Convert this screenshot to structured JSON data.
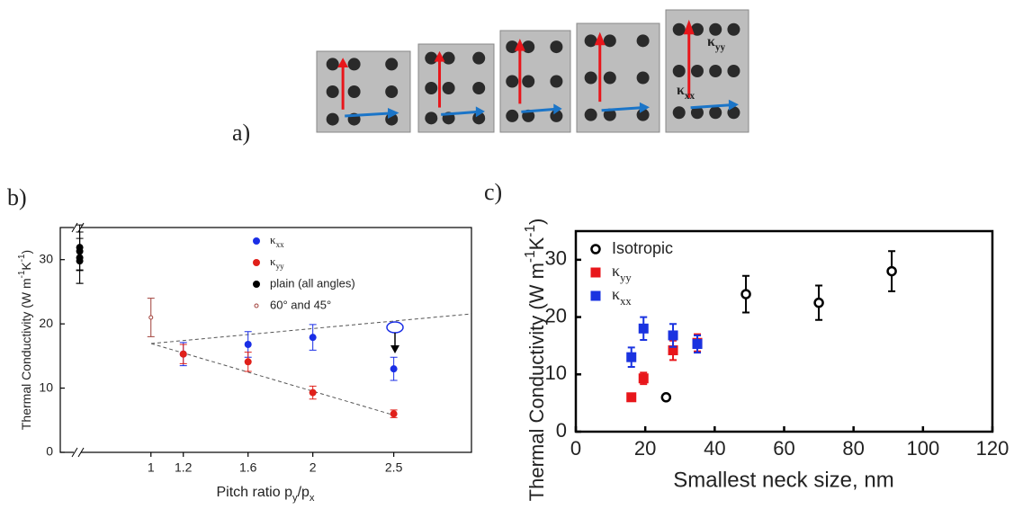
{
  "figure": {
    "panel_labels": [
      "a)",
      "b)",
      "c)"
    ],
    "image_labels": [
      [
        "κ",
        "yy"
      ],
      [
        "κ",
        "xx"
      ]
    ]
  },
  "chart_data": [
    {
      "type": "scatter",
      "y_label": [
        "Thermal Conductivity (W m",
        "-1",
        "K",
        "-1",
        ")"
      ],
      "x_label": [
        "Pitch ratio p",
        "y",
        "/p",
        "x"
      ],
      "xlim": [
        0.44,
        2.98
      ],
      "ylim": [
        0,
        35
      ],
      "xticks": [
        1,
        1.2,
        1.6,
        2,
        2.5
      ],
      "yticks": [
        0,
        10,
        20,
        30
      ],
      "series": [
        {
          "name": [
            "κ",
            "xx"
          ],
          "color": "#1a2ee6",
          "marker": "circle",
          "x": [
            1.2,
            1.6,
            2,
            2.5
          ],
          "values": [
            15.3,
            16.8,
            17.9,
            13
          ],
          "errors": [
            1.8,
            2,
            2,
            1.8
          ]
        },
        {
          "name": [
            "κ",
            "yy"
          ],
          "color": "#e0201a",
          "marker": "circle",
          "x": [
            1.2,
            1.6,
            2,
            2.5
          ],
          "values": [
            15.3,
            14.1,
            9.3,
            6
          ],
          "errors": [
            1.5,
            1.5,
            1,
            0.6
          ]
        },
        {
          "name": "plain (all angles)",
          "color": "#000000",
          "marker": "circle",
          "x": [
            0.56,
            0.56,
            0.56,
            0.56
          ],
          "values": [
            31.9,
            31.3,
            30.3,
            29.8
          ],
          "errors": [
            3.5,
            3,
            4,
            3.5
          ]
        },
        {
          "name": "60° and 45°",
          "color": "#a0403a",
          "marker": "open-circle",
          "x": [
            1
          ],
          "values": [
            21
          ],
          "errors": [
            3
          ]
        }
      ]
    },
    {
      "type": "scatter",
      "y_label": [
        "Thermal Conductivity (W m",
        "-1",
        "K",
        "-1",
        ")"
      ],
      "x_label": "Smallest neck size, nm",
      "xlim": [
        0,
        120
      ],
      "ylim": [
        0,
        35
      ],
      "xticks": [
        0,
        20,
        40,
        60,
        80,
        100,
        120
      ],
      "yticks": [
        0,
        10,
        20,
        30
      ],
      "series": [
        {
          "name": "Isotropic",
          "color": "#000000",
          "marker": "open-circle",
          "x": [
            26,
            49,
            70,
            91
          ],
          "values": [
            6,
            24,
            22.5,
            28
          ],
          "errors": [
            null,
            3.2,
            3,
            3.5
          ]
        },
        {
          "name": [
            "κ",
            "yy"
          ],
          "color": "#e8161b",
          "marker": "square",
          "x": [
            16,
            19.5,
            28,
            35
          ],
          "values": [
            6,
            9.3,
            14.2,
            15.5
          ],
          "errors": [
            0.5,
            1,
            1.7,
            1.5
          ]
        },
        {
          "name": [
            "κ",
            "xx"
          ],
          "color": "#1a33e0",
          "marker": "square",
          "x": [
            16,
            19.5,
            28,
            35
          ],
          "values": [
            13,
            18,
            16.8,
            15.3
          ],
          "errors": [
            1.7,
            2,
            2,
            1.5
          ]
        }
      ]
    }
  ]
}
